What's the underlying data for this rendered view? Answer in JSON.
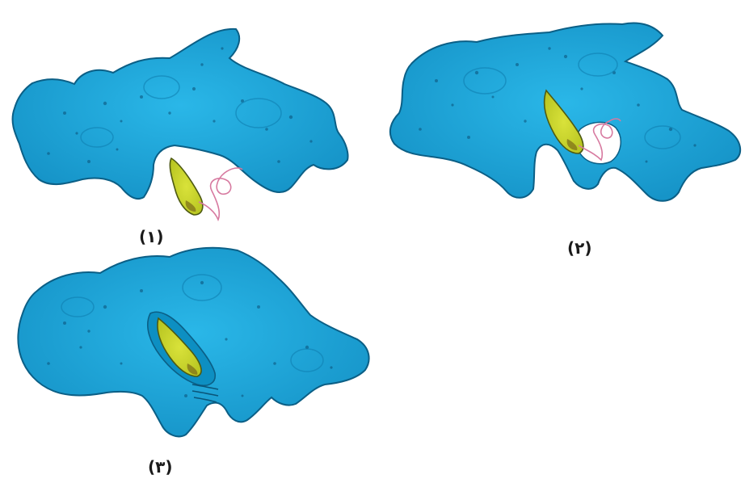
{
  "panels": [
    {
      "id": "1",
      "label": "(۱)"
    },
    {
      "id": "2",
      "label": "(۲)"
    },
    {
      "id": "3",
      "label": "(۳)"
    }
  ],
  "colors": {
    "cell_body": "#1aa3d9",
    "cell_outline": "#0b5f86",
    "cell_dots": "#0b3f66",
    "parasite_body": "#c9d62a",
    "parasite_outline": "#4e5a12",
    "parasite_core": "#7a6a18",
    "flagellum": "#d77aa0",
    "background": "#ffffff"
  }
}
